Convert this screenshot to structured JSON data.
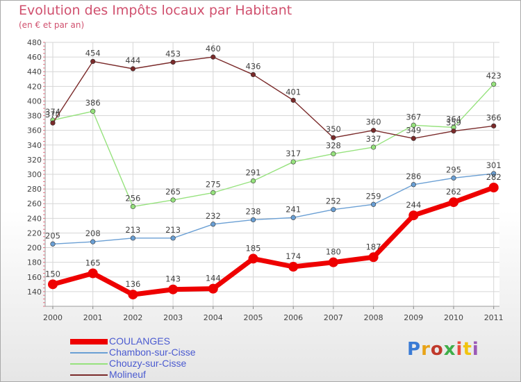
{
  "title": "Evolution des Impôts locaux par Habitant",
  "subtitle": "(en € et par an)",
  "logo": {
    "text": "Proxiti",
    "colors": [
      "#3a7bd5",
      "#e8a317",
      "#c0392b",
      "#3fae49",
      "#e84c3d",
      "#f1c40f",
      "#9b59b6"
    ]
  },
  "chart_data": {
    "type": "line",
    "x": [
      "2000",
      "2001",
      "2002",
      "2003",
      "2004",
      "2005",
      "2006",
      "2007",
      "2008",
      "2009",
      "2010",
      "2011"
    ],
    "ylim": [
      120,
      480
    ],
    "yticks": [
      140,
      160,
      180,
      200,
      220,
      240,
      260,
      280,
      300,
      320,
      340,
      360,
      380,
      400,
      420,
      440,
      460,
      480
    ],
    "grid": true,
    "legend_position": "bottom-left",
    "series": [
      {
        "name": "COULANGES",
        "color": "#ee0000",
        "values": [
          150,
          165,
          136,
          143,
          144,
          185,
          174,
          180,
          187,
          244,
          262,
          282
        ]
      },
      {
        "name": "Chambon-sur-Cisse",
        "color": "#6a9fd4",
        "values": [
          205,
          208,
          213,
          213,
          232,
          238,
          241,
          252,
          259,
          286,
          295,
          301
        ]
      },
      {
        "name": "Chouzy-sur-Cisse",
        "color": "#96e27d",
        "values": [
          374,
          386,
          256,
          265,
          275,
          291,
          317,
          328,
          337,
          367,
          364,
          423
        ]
      },
      {
        "name": "Molineuf",
        "color": "#7a2a2a",
        "values": [
          370,
          454,
          444,
          453,
          460,
          436,
          401,
          350,
          360,
          349,
          359,
          366
        ]
      }
    ]
  }
}
